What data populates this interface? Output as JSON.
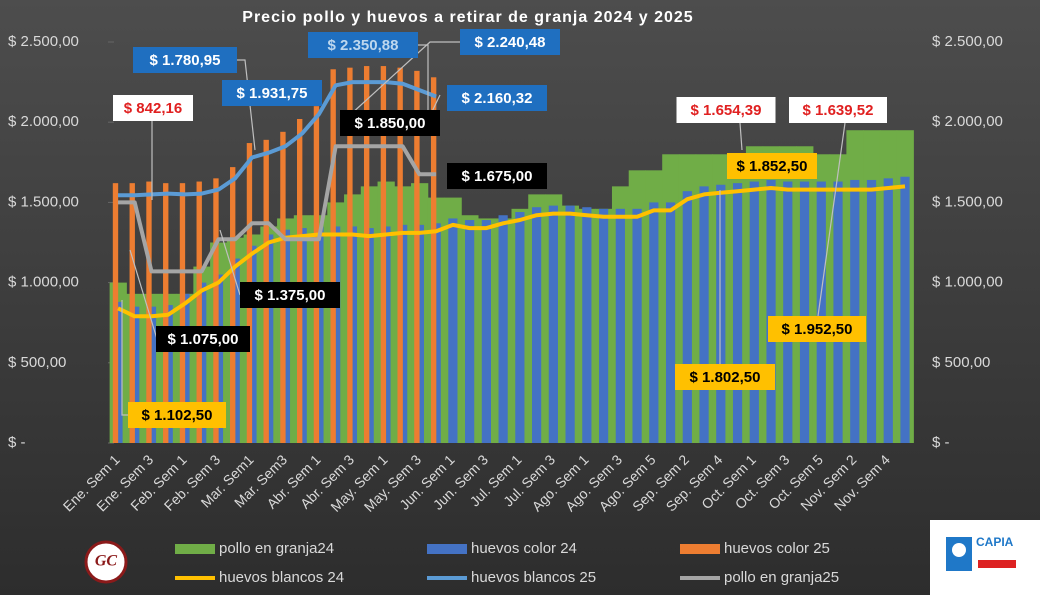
{
  "chart_data": {
    "type": "combo",
    "title": "Precio pollo y huevos a retirar de granja  2024 y 2025",
    "categories": [
      "Ene. Sem 1",
      null,
      "Ene. Sem 3",
      null,
      "Feb. Sem 1",
      null,
      "Feb. Sem 3",
      null,
      "Mar. Sem1",
      null,
      "Mar. Sem3",
      null,
      "Abr. Sem 1",
      null,
      "Abr. Sem 3",
      null,
      "May. Sem 1",
      null,
      "May. Sem 3",
      null,
      "Jun. Sem 1",
      null,
      "Jun. Sem 3",
      null,
      "Jul. Sem 1",
      null,
      "Jul. Sem 3",
      null,
      "Ago. Sem 1",
      null,
      "Ago. Sem 3",
      null,
      "Ago. Sem 5",
      null,
      "Sep. Sem 2",
      null,
      "Sep. Sem 4",
      null,
      "Oct. Sem 1",
      null,
      "Oct. Sem 3",
      null,
      "Oct. Sem 5",
      null,
      "Nov. Sem 2",
      null,
      "Nov. Sem 4",
      null
    ],
    "series": [
      {
        "name": "pollo en granja24",
        "type": "area",
        "color": "#70ad47",
        "values": [
          1000,
          930,
          930,
          930,
          930,
          1100,
          1250,
          1280,
          1300,
          1350,
          1400,
          1420,
          1420,
          1500,
          1550,
          1600,
          1630,
          1600,
          1620,
          1530,
          1530,
          1420,
          1400,
          1400,
          1460,
          1550,
          1550,
          1480,
          1460,
          1460,
          1600,
          1700,
          1700,
          1800,
          1800,
          1800,
          1800,
          1800,
          1850,
          1850,
          1850,
          1850,
          1800,
          1800,
          1950,
          1950,
          1950,
          1950
        ]
      },
      {
        "name": "huevos color 24",
        "type": "bar",
        "color": "#4472c4",
        "values": [
          880,
          850,
          850,
          860,
          930,
          1000,
          1050,
          1150,
          1230,
          1300,
          1330,
          1340,
          1350,
          1350,
          1350,
          1340,
          1350,
          1360,
          1360,
          1370,
          1400,
          1390,
          1390,
          1420,
          1440,
          1470,
          1480,
          1480,
          1470,
          1460,
          1460,
          1460,
          1500,
          1500,
          1570,
          1600,
          1610,
          1620,
          1630,
          1640,
          1630,
          1630,
          1630,
          1630,
          1640,
          1640,
          1650,
          1660
        ]
      },
      {
        "name": "huevos color 25",
        "type": "bar",
        "color": "#ed7d31",
        "values": [
          1620,
          1620,
          1630,
          1620,
          1620,
          1630,
          1650,
          1720,
          1870,
          1890,
          1940,
          2020,
          2100,
          2330,
          2340,
          2350,
          2350,
          2340,
          2320,
          2280,
          null,
          null,
          null,
          null,
          null,
          null,
          null,
          null,
          null,
          null,
          null,
          null,
          null,
          null,
          null,
          null,
          null,
          null,
          null,
          null,
          null,
          null,
          null,
          null,
          null,
          null,
          null,
          null
        ]
      },
      {
        "name": "huevos blancos 24",
        "type": "line",
        "color": "#ffc000",
        "values": [
          840,
          790,
          790,
          800,
          870,
          950,
          1000,
          1100,
          1180,
          1250,
          1280,
          1290,
          1300,
          1300,
          1300,
          1290,
          1300,
          1310,
          1310,
          1320,
          1360,
          1340,
          1340,
          1370,
          1390,
          1420,
          1430,
          1430,
          1420,
          1410,
          1410,
          1410,
          1450,
          1450,
          1520,
          1550,
          1560,
          1570,
          1580,
          1590,
          1580,
          1580,
          1580,
          1580,
          1580,
          1580,
          1590,
          1600
        ]
      },
      {
        "name": "huevos blancos 25",
        "type": "line",
        "color": "#5b9bd5",
        "values": [
          1545,
          1545,
          1550,
          1555,
          1550,
          1555,
          1580,
          1650,
          1780,
          1810,
          1850,
          1930,
          2050,
          2230,
          2250,
          2250,
          2250,
          2240,
          2200,
          2160,
          null,
          null,
          null,
          null,
          null,
          null,
          null,
          null,
          null,
          null,
          null,
          null,
          null,
          null,
          null,
          null,
          null,
          null,
          null,
          null,
          null,
          null,
          null,
          null,
          null,
          null,
          null,
          null
        ]
      },
      {
        "name": "pollo en granja25",
        "type": "line",
        "color": "#a5a5a5",
        "values": [
          1500,
          1500,
          1070,
          1070,
          1070,
          1070,
          1270,
          1270,
          1370,
          1370,
          1270,
          1270,
          1270,
          1850,
          1850,
          1850,
          1850,
          1850,
          1675,
          1675,
          null,
          null,
          null,
          null,
          null,
          null,
          null,
          null,
          null,
          null,
          null,
          null,
          null,
          null,
          null,
          null,
          null,
          null,
          null,
          null,
          null,
          null,
          null,
          null,
          null,
          null,
          null,
          null
        ]
      }
    ],
    "ylim": [
      0,
      2500
    ],
    "yticks": [
      {
        "value": 0,
        "label": "$ -"
      },
      {
        "value": 500,
        "label": "$ 500,00"
      },
      {
        "value": 1000,
        "label": "$ 1.000,00"
      },
      {
        "value": 1500,
        "label": "$ 1.500,00"
      },
      {
        "value": 2000,
        "label": "$ 2.000,00"
      },
      {
        "value": 2500,
        "label": "$ 2.500,00"
      }
    ],
    "annotations": [
      "$ 1.780,95",
      "$ 1.931,75",
      "$ 2.350,88",
      "$ 2.240,48",
      "$ 2.160,32",
      "$ 842,16",
      "$ 1.850,00",
      "$ 1.675,00",
      "$ 1.375,00",
      "$ 1.075,00",
      "$ 1.102,50",
      "$ 1.654,39",
      "$ 1.639,52",
      "$ 1.852,50",
      "$ 1.952,50",
      "$ 1.802,50"
    ],
    "legend": "bottom"
  },
  "logos": {
    "left": "GC",
    "right": "CAPIA"
  }
}
